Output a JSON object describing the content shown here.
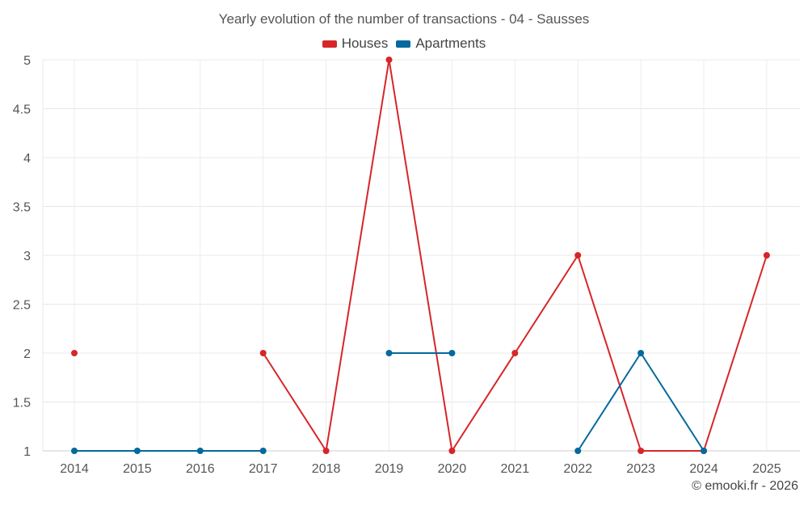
{
  "chart_data": {
    "type": "line",
    "title": "Yearly evolution of the number of transactions - 04 - Sausses",
    "xlabel": "",
    "ylabel": "",
    "categories": [
      "2014",
      "2015",
      "2016",
      "2017",
      "2018",
      "2019",
      "2020",
      "2021",
      "2022",
      "2023",
      "2024",
      "2025"
    ],
    "ylim": [
      1,
      5
    ],
    "yticks": [
      "1",
      "1.5",
      "2",
      "2.5",
      "3",
      "3.5",
      "4",
      "4.5",
      "5"
    ],
    "grid": true,
    "legend_position": "top-center",
    "series": [
      {
        "name": "Houses",
        "color": "#d62628",
        "values": [
          2,
          null,
          null,
          2,
          1,
          5,
          1,
          2,
          3,
          1,
          1,
          3
        ]
      },
      {
        "name": "Apartments",
        "color": "#04699d",
        "values": [
          1,
          1,
          1,
          1,
          null,
          2,
          2,
          null,
          1,
          2,
          1,
          null
        ]
      }
    ]
  },
  "credit": "© emooki.fr - 2026"
}
